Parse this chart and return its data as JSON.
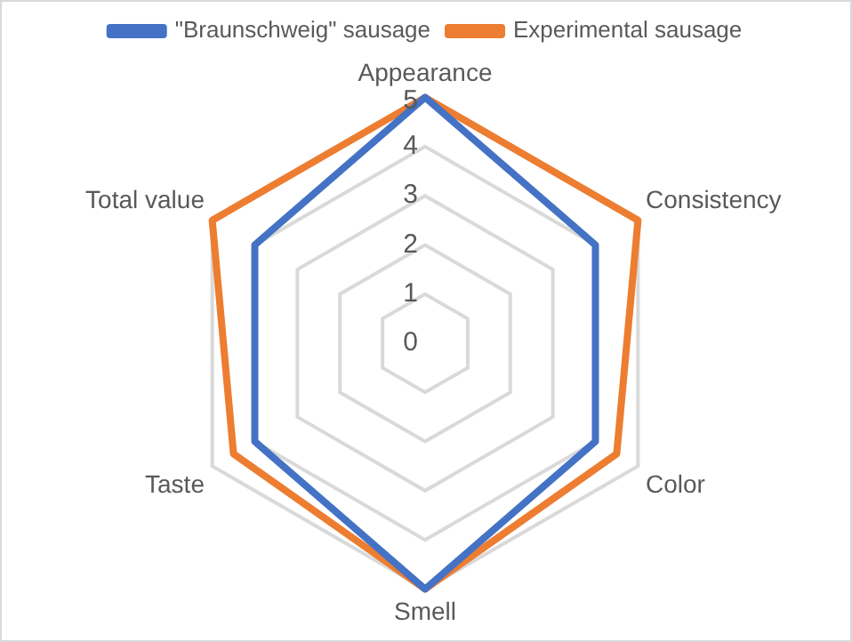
{
  "chart_data": {
    "type": "radar",
    "categories": [
      "Appearance",
      "Consistency",
      "Color",
      "Smell",
      "Taste",
      "Total value"
    ],
    "series": [
      {
        "name": "\"Braunschweig\" sausage",
        "color": "#4472c4",
        "values": [
          5,
          4,
          4,
          5,
          4,
          4
        ]
      },
      {
        "name": "Experimental sausage",
        "color": "#ed7d31",
        "values": [
          5,
          5,
          4.5,
          5,
          4.5,
          5
        ]
      }
    ],
    "ylim": [
      0,
      5
    ],
    "yticks": [
      0,
      1,
      2,
      3,
      4,
      5
    ],
    "grid": true,
    "legend": "top"
  }
}
